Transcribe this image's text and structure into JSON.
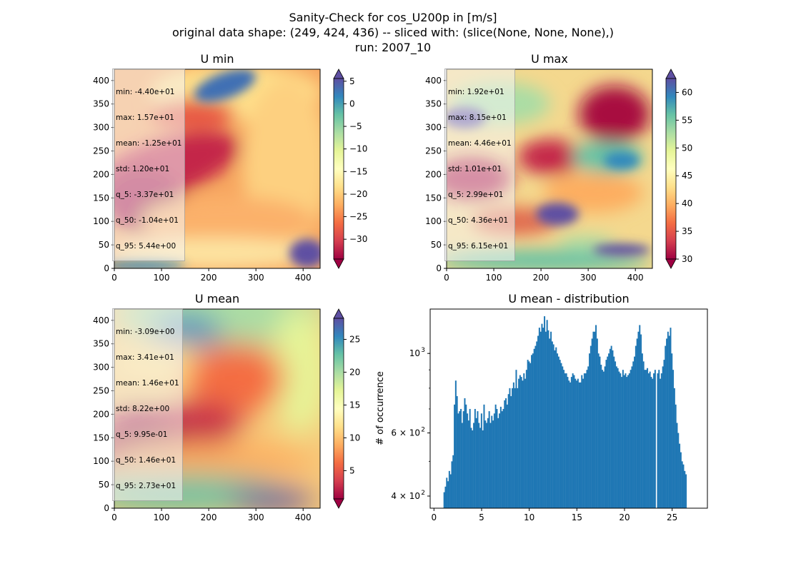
{
  "figure": {
    "suptitle_lines": [
      "Sanity-Check for cos_U200p in [m/s]",
      "original data shape: (249, 424, 436) -- sliced with: (slice(None, None, None),)",
      "run: 2007_10"
    ],
    "colormap": "Spectral",
    "bar_color": "#1f77b4"
  },
  "chart_data": [
    {
      "type": "heatmap",
      "title": "U min",
      "xlim": [
        0,
        436
      ],
      "ylim": [
        0,
        424
      ],
      "xticks": [
        "0",
        "100",
        "200",
        "300",
        "400"
      ],
      "yticks": [
        "0",
        "50",
        "100",
        "150",
        "200",
        "250",
        "300",
        "350",
        "400"
      ],
      "colorbar": {
        "range": [
          -34.4,
          5.6
        ],
        "ticks": [
          "5",
          "0",
          "−5",
          "−10",
          "−15",
          "−20",
          "−25",
          "−30"
        ],
        "tick_values": [
          5,
          0,
          -5,
          -10,
          -15,
          -20,
          -25,
          -30
        ],
        "extend": "both"
      },
      "stats": [
        "min: -4.40e+01",
        "max: 1.57e+01",
        "mean: -1.25e+01",
        "std: 1.20e+01",
        "q_5: -3.37e+01",
        "q_50: -1.04e+01",
        "q_95: 5.44e+00"
      ]
    },
    {
      "type": "heatmap",
      "title": "U max",
      "xlim": [
        0,
        436
      ],
      "ylim": [
        0,
        424
      ],
      "xticks": [
        "0",
        "100",
        "200",
        "300",
        "400"
      ],
      "yticks": [
        "0",
        "50",
        "100",
        "150",
        "200",
        "250",
        "300",
        "350",
        "400"
      ],
      "colorbar": {
        "range": [
          30,
          62.5
        ],
        "ticks": [
          "60",
          "55",
          "50",
          "45",
          "40",
          "35",
          "30"
        ],
        "tick_values": [
          60,
          55,
          50,
          45,
          40,
          35,
          30
        ],
        "extend": "both"
      },
      "stats": [
        "min: 1.92e+01",
        "max: 8.15e+01",
        "mean: 4.46e+01",
        "std: 1.01e+01",
        "q_5: 2.99e+01",
        "q_50: 4.36e+01",
        "q_95: 6.15e+01"
      ]
    },
    {
      "type": "heatmap",
      "title": "U mean",
      "xlim": [
        0,
        436
      ],
      "ylim": [
        0,
        424
      ],
      "xticks": [
        "0",
        "100",
        "200",
        "300",
        "400"
      ],
      "yticks": [
        "0",
        "50",
        "100",
        "150",
        "200",
        "250",
        "300",
        "350",
        "400"
      ],
      "colorbar": {
        "range": [
          0.7,
          28.2
        ],
        "ticks": [
          "25",
          "20",
          "15",
          "10",
          "5"
        ],
        "tick_values": [
          25,
          20,
          15,
          10,
          5
        ],
        "extend": "both"
      },
      "stats": [
        "min: -3.09e+00",
        "max: 3.41e+01",
        "mean: 1.46e+01",
        "std: 8.22e+00",
        "q_5: 9.95e-01",
        "q_50: 1.46e+01",
        "q_95: 2.73e+01"
      ]
    },
    {
      "type": "bar",
      "title": "U mean - distribution",
      "ylabel": "# of occurrence",
      "xlim": [
        -0.4,
        28.7
      ],
      "ylim": [
        370,
        1330
      ],
      "yscale": "log",
      "xticks": [
        "0",
        "5",
        "10",
        "15",
        "20",
        "25"
      ],
      "ytick_values": [
        400,
        600,
        1000
      ],
      "ytick_labels": [
        {
          "base": "4 × 10",
          "exp": "2"
        },
        {
          "base": "6 × 10",
          "exp": "2"
        },
        {
          "base": "10",
          "exp": "3"
        }
      ],
      "bin_start": 1.0,
      "bin_width": 0.135,
      "values": [
        410,
        425,
        450,
        440,
        470,
        460,
        500,
        520,
        720,
        840,
        760,
        680,
        690,
        700,
        640,
        690,
        750,
        720,
        680,
        650,
        700,
        620,
        610,
        640,
        700,
        660,
        690,
        640,
        620,
        680,
        610,
        720,
        650,
        640,
        660,
        690,
        640,
        670,
        650,
        680,
        720,
        700,
        660,
        680,
        710,
        690,
        700,
        740,
        750,
        720,
        770,
        800,
        760,
        800,
        830,
        800,
        900,
        800,
        850,
        870,
        860,
        840,
        880,
        850,
        900,
        960,
        950,
        940,
        990,
        1000,
        1030,
        1050,
        1080,
        1120,
        1180,
        1150,
        1210,
        1180,
        1270,
        1150,
        1240,
        1160,
        1100,
        1150,
        1080,
        1060,
        1020,
        1040,
        1000,
        980,
        960,
        940,
        920,
        900,
        880,
        880,
        860,
        840,
        830,
        860,
        880,
        870,
        850,
        840,
        850,
        830,
        830,
        870,
        850,
        880,
        880,
        900,
        920,
        1000,
        1050,
        1100,
        1150,
        1150,
        1200,
        1100,
        1000,
        980,
        930,
        900,
        890,
        920,
        960,
        980,
        1000,
        1030,
        1050,
        1020,
        980,
        950,
        920,
        910,
        890,
        880,
        860,
        900,
        870,
        880,
        860,
        870,
        880,
        900,
        920,
        950,
        980,
        1050,
        1100,
        1150,
        1200,
        1130,
        1000,
        950,
        900,
        900,
        910,
        880,
        890,
        860,
        850,
        880,
        900,
        20,
        880,
        900,
        850,
        880,
        920,
        960,
        1050,
        1100,
        1150,
        1120,
        1180,
        1000,
        900,
        800,
        720,
        640,
        600,
        560,
        530,
        500,
        490,
        470,
        460
      ]
    }
  ]
}
